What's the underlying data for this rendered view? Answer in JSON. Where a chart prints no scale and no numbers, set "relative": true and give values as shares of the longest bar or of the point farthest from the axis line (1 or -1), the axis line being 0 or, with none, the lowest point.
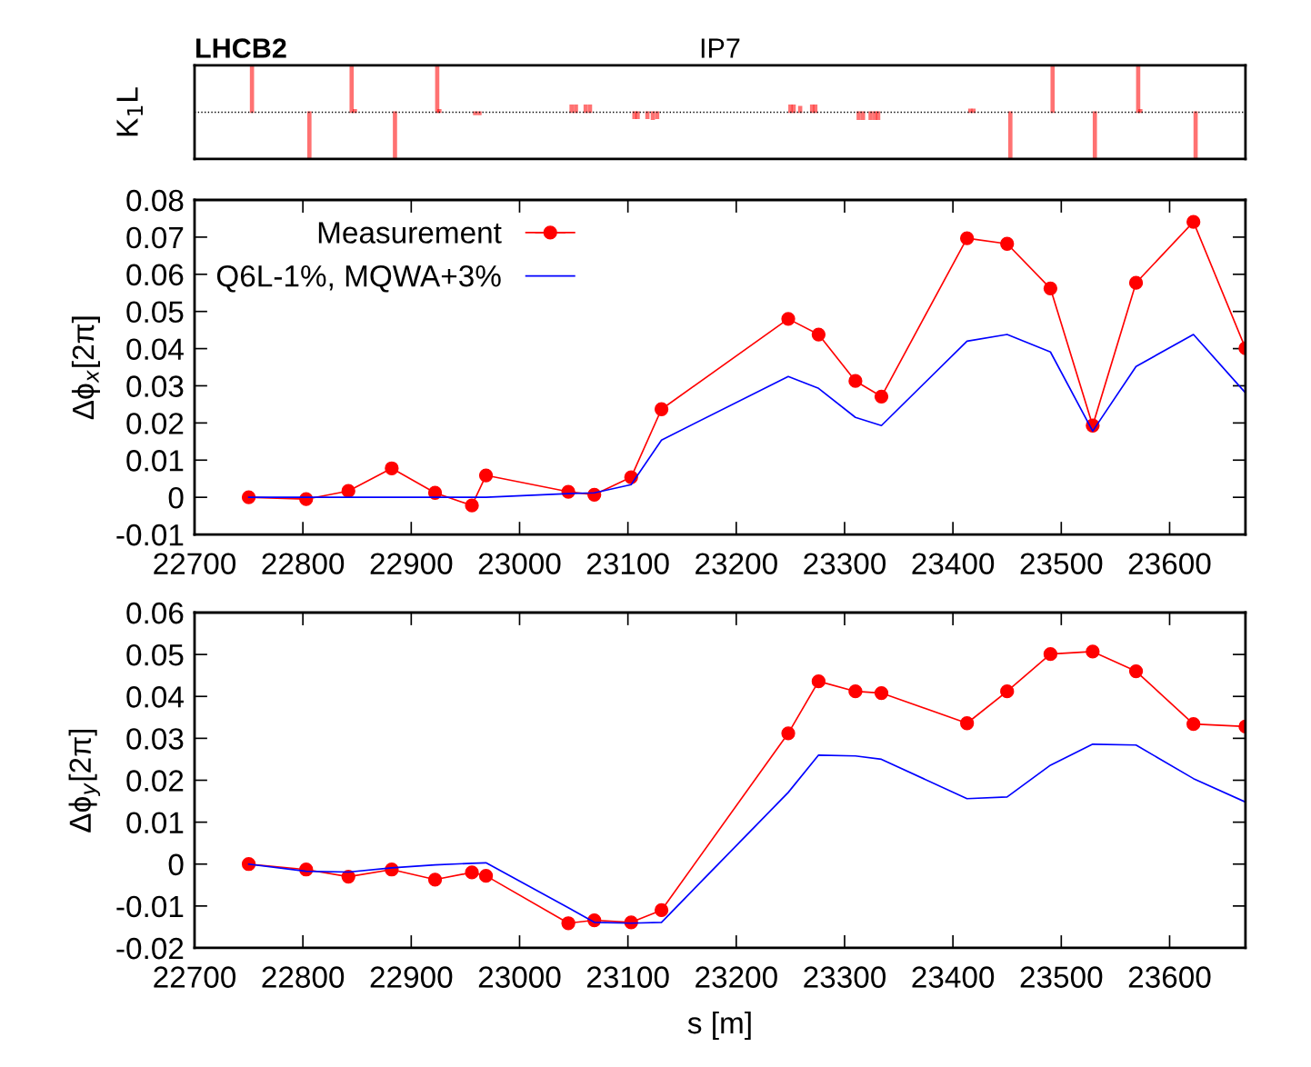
{
  "chart_data": [
    {
      "type": "bar",
      "ylabel": "K$_{1}$L",
      "relative": true,
      "annotations": [
        "LHCB2",
        "IP7"
      ],
      "x": [
        22753,
        22806,
        22845,
        22848,
        22885,
        22924,
        22926,
        22959,
        22963,
        23048,
        23052,
        23061,
        23065,
        23106,
        23109,
        23118,
        23123,
        23127,
        23250,
        23253,
        23259,
        23270,
        23273,
        23313,
        23317,
        23324,
        23328,
        23331,
        23416,
        23419,
        23453,
        23492,
        23531,
        23571,
        23573,
        23624
      ],
      "xlim": [
        22700,
        23670
      ],
      "series": [
        {
          "color": "#ff0000",
          "values": [
            1,
            -1,
            1,
            0.05,
            -1,
            1,
            0.05,
            -0.05,
            -0.05,
            0.15,
            0.15,
            0.15,
            0.15,
            -0.13,
            -0.13,
            -0.13,
            -0.15,
            -0.13,
            0.15,
            0.15,
            0.12,
            0.15,
            0.15,
            -0.15,
            -0.15,
            -0.15,
            -0.15,
            -0.15,
            0.06,
            0.06,
            -1,
            1,
            -1,
            1,
            0.05,
            -1
          ]
        }
      ],
      "ref_lines": [
        {
          "axis": "y",
          "value": 0,
          "color": "#000000",
          "line_style": "dotted"
        }
      ]
    },
    {
      "type": "line",
      "ylabel": "Δϕ$_{x}$[2π]",
      "xlim": [
        22700,
        23670
      ],
      "ylim": [
        -0.01,
        0.08
      ],
      "xticks": [
        22700,
        22800,
        22900,
        23000,
        23100,
        23200,
        23300,
        23400,
        23500,
        23600
      ],
      "yticks": [
        -0.01,
        0,
        0.01,
        0.02,
        0.03,
        0.04,
        0.05,
        0.06,
        0.07,
        0.08
      ],
      "legend": "top left",
      "grid": false,
      "series": [
        {
          "name": "Measurement",
          "color": "#ff0000",
          "marker": "circle",
          "x": [
            22750,
            22803,
            22842,
            22882,
            22922,
            22956,
            22969,
            23045,
            23069,
            23103,
            23131,
            23248,
            23276,
            23310,
            23334,
            23413,
            23450,
            23490,
            23529,
            23569,
            23622,
            23670
          ],
          "values": [
            0,
            -0.0005,
            0.0017,
            0.0078,
            0.0012,
            -0.0022,
            0.0059,
            0.0015,
            0.0007,
            0.0054,
            0.0237,
            0.048,
            0.0438,
            0.0313,
            0.0271,
            0.0697,
            0.0682,
            0.0562,
            0.0193,
            0.0577,
            0.0741,
            0.0401
          ]
        },
        {
          "name": "Q6L-1%, MQWA+3%",
          "color": "#0000ff",
          "marker": "none",
          "x": [
            22750,
            22803,
            22842,
            22882,
            22922,
            22956,
            22969,
            23045,
            23069,
            23103,
            23131,
            23248,
            23276,
            23310,
            23334,
            23413,
            23450,
            23490,
            23529,
            23569,
            23622,
            23670
          ],
          "values": [
            0,
            0,
            0,
            0,
            0,
            0,
            0,
            0.001,
            0.0012,
            0.0034,
            0.0154,
            0.0325,
            0.0293,
            0.0215,
            0.0193,
            0.042,
            0.0438,
            0.0391,
            0.0178,
            0.0352,
            0.0438,
            0.0281
          ]
        }
      ]
    },
    {
      "type": "line",
      "ylabel": "Δϕ$_{y}$[2π]",
      "xlabel": "s [m]",
      "xlim": [
        22700,
        23670
      ],
      "ylim": [
        -0.02,
        0.06
      ],
      "xticks": [
        22700,
        22800,
        22900,
        23000,
        23100,
        23200,
        23300,
        23400,
        23500,
        23600
      ],
      "yticks": [
        -0.02,
        -0.01,
        0,
        0.01,
        0.02,
        0.03,
        0.04,
        0.05,
        0.06
      ],
      "grid": false,
      "series": [
        {
          "color": "#ff0000",
          "marker": "circle",
          "x": [
            22750,
            22803,
            22842,
            22882,
            22922,
            22956,
            22969,
            23045,
            23069,
            23103,
            23131,
            23248,
            23276,
            23310,
            23334,
            23413,
            23450,
            23490,
            23529,
            23569,
            23622,
            23670
          ],
          "values": [
            0,
            -0.0013,
            -0.003,
            -0.0013,
            -0.0037,
            -0.002,
            -0.0028,
            -0.0141,
            -0.0134,
            -0.0139,
            -0.011,
            0.0312,
            0.0436,
            0.0412,
            0.0408,
            0.0336,
            0.0412,
            0.0501,
            0.0507,
            0.046,
            0.0334,
            0.0328
          ]
        },
        {
          "color": "#0000ff",
          "marker": "none",
          "x": [
            22750,
            22803,
            22842,
            22882,
            22922,
            22956,
            22969,
            23045,
            23069,
            23103,
            23131,
            23248,
            23276,
            23310,
            23334,
            23413,
            23450,
            23490,
            23529,
            23569,
            23622,
            23670
          ],
          "values": [
            0,
            -0.0017,
            -0.0019,
            -0.0009,
            -0.0002,
            0.0002,
            0.0003,
            -0.0104,
            -0.0139,
            -0.0141,
            -0.0139,
            0.0171,
            0.026,
            0.0258,
            0.025,
            0.0156,
            0.016,
            0.0236,
            0.0286,
            0.0284,
            0.0204,
            0.0148
          ]
        }
      ]
    }
  ]
}
